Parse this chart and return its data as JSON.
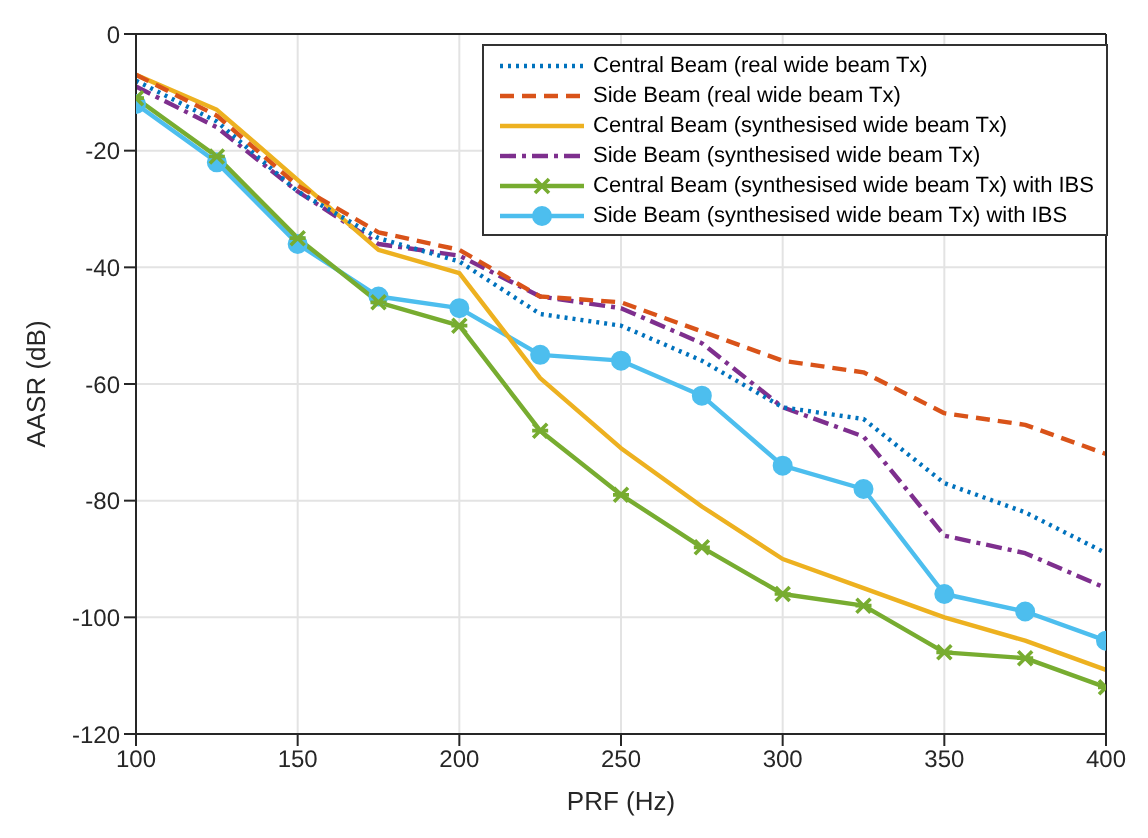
{
  "chart_data": {
    "type": "line",
    "xlabel": "PRF (Hz)",
    "ylabel": "AASR (dB)",
    "x": [
      100,
      125,
      150,
      175,
      200,
      225,
      250,
      275,
      300,
      325,
      350,
      375,
      400
    ],
    "xlim": [
      100,
      400
    ],
    "xticks": [
      100,
      150,
      200,
      250,
      300,
      350,
      400
    ],
    "ylim": [
      -120,
      0
    ],
    "yticks": [
      -120,
      -100,
      -80,
      -60,
      -40,
      -20,
      0
    ],
    "grid": true,
    "legend": "top right",
    "series": [
      {
        "name": "Central Beam (real wide beam Tx)",
        "color": "#0072bd",
        "line_style": "dotted",
        "marker": "none",
        "values": [
          -8,
          -15,
          -27,
          -35,
          -39,
          -48,
          -50,
          -56,
          -64,
          -66,
          -77,
          -82,
          -89
        ]
      },
      {
        "name": "Side Beam (real wide beam Tx)",
        "color": "#d95319",
        "line_style": "dashed",
        "marker": "none",
        "values": [
          -7,
          -14,
          -26,
          -34,
          -37,
          -45,
          -46,
          -51,
          -56,
          -58,
          -65,
          -67,
          -72
        ]
      },
      {
        "name": "Central Beam (synthesised wide beam Tx)",
        "color": "#edb120",
        "line_style": "solid",
        "marker": "none",
        "values": [
          -7,
          -13,
          -25,
          -37,
          -41,
          -59,
          -71,
          -81,
          -90,
          -95,
          -100,
          -104,
          -109
        ]
      },
      {
        "name": "Side Beam (synthesised wide beam Tx)",
        "color": "#7e2f8e",
        "line_style": "dashdot",
        "marker": "none",
        "values": [
          -9,
          -16,
          -27,
          -36,
          -38,
          -45,
          -47,
          -53,
          -64,
          -69,
          -86,
          -89,
          -95
        ]
      },
      {
        "name": "Central Beam (synthesised wide beam Tx) with IBS",
        "color": "#77ac30",
        "line_style": "solid",
        "marker": "cross",
        "values": [
          -11,
          -21,
          -35,
          -46,
          -50,
          -68,
          -79,
          -88,
          -96,
          -98,
          -106,
          -107,
          -112
        ]
      },
      {
        "name": "Side Beam (synthesised wide beam Tx) with IBS",
        "color": "#4dbeee",
        "line_style": "solid",
        "marker": "circle",
        "values": [
          -12,
          -22,
          -36,
          -45,
          -47,
          -55,
          -56,
          -62,
          -74,
          -78,
          -96,
          -99,
          -104
        ]
      }
    ]
  }
}
